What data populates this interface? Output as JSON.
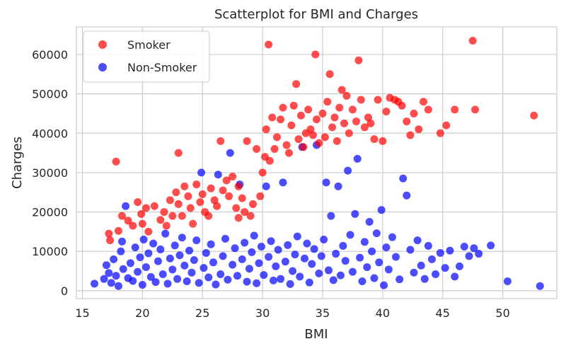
{
  "chart_data": {
    "type": "scatter",
    "title": "Scatterplot for BMI and Charges",
    "xlabel": "BMI",
    "ylabel": "Charges",
    "xlim": [
      14.5,
      54.5
    ],
    "ylim": [
      -2000,
      67000
    ],
    "xticks": [
      15,
      20,
      25,
      30,
      35,
      40,
      45,
      50
    ],
    "yticks": [
      0,
      10000,
      20000,
      30000,
      40000,
      50000,
      60000
    ],
    "grid": true,
    "legend_position": "top-left",
    "series": [
      {
        "name": "Smoker",
        "color": "#ff0000",
        "points": [
          [
            17.2,
            14500
          ],
          [
            17.3,
            12800
          ],
          [
            17.8,
            32800
          ],
          [
            18.0,
            15200
          ],
          [
            18.3,
            19000
          ],
          [
            18.8,
            17800
          ],
          [
            19.2,
            16500
          ],
          [
            19.6,
            22500
          ],
          [
            19.9,
            19500
          ],
          [
            20.0,
            17000
          ],
          [
            20.3,
            21000
          ],
          [
            20.5,
            15000
          ],
          [
            21.0,
            21500
          ],
          [
            21.5,
            18000
          ],
          [
            21.8,
            20000
          ],
          [
            22.0,
            16500
          ],
          [
            22.3,
            23000
          ],
          [
            22.5,
            19000
          ],
          [
            22.8,
            25000
          ],
          [
            23.0,
            35000
          ],
          [
            23.0,
            22000
          ],
          [
            23.3,
            19000
          ],
          [
            23.5,
            26500
          ],
          [
            23.8,
            24000
          ],
          [
            24.0,
            21000
          ],
          [
            24.2,
            17000
          ],
          [
            24.5,
            27000
          ],
          [
            24.8,
            22500
          ],
          [
            25.0,
            24500
          ],
          [
            25.2,
            20000
          ],
          [
            25.5,
            19000
          ],
          [
            25.7,
            26000
          ],
          [
            26.0,
            23000
          ],
          [
            26.2,
            21500
          ],
          [
            26.5,
            38000
          ],
          [
            26.7,
            25500
          ],
          [
            27.0,
            28000
          ],
          [
            27.2,
            24000
          ],
          [
            27.5,
            29000
          ],
          [
            27.8,
            21000
          ],
          [
            28.0,
            18500
          ],
          [
            28.0,
            26500
          ],
          [
            28.3,
            23500
          ],
          [
            28.5,
            20000
          ],
          [
            28.7,
            38000
          ],
          [
            29.0,
            19000
          ],
          [
            29.2,
            22000
          ],
          [
            29.5,
            36000
          ],
          [
            29.8,
            24000
          ],
          [
            30.0,
            30000
          ],
          [
            30.2,
            34000
          ],
          [
            30.3,
            41000
          ],
          [
            30.5,
            62500
          ],
          [
            30.6,
            33000
          ],
          [
            30.8,
            44000
          ],
          [
            31.0,
            36000
          ],
          [
            31.2,
            39000
          ],
          [
            31.5,
            43500
          ],
          [
            31.7,
            46500
          ],
          [
            32.0,
            37000
          ],
          [
            32.2,
            35000
          ],
          [
            32.4,
            42000
          ],
          [
            32.6,
            47000
          ],
          [
            32.8,
            52500
          ],
          [
            33.0,
            38500
          ],
          [
            33.2,
            44500
          ],
          [
            33.4,
            36500
          ],
          [
            33.6,
            40000
          ],
          [
            33.8,
            46000
          ],
          [
            34.0,
            41000
          ],
          [
            34.2,
            39500
          ],
          [
            34.4,
            60000
          ],
          [
            34.5,
            43500
          ],
          [
            34.7,
            37500
          ],
          [
            35.0,
            45000
          ],
          [
            35.2,
            39000
          ],
          [
            35.4,
            48000
          ],
          [
            35.6,
            55000
          ],
          [
            35.8,
            41500
          ],
          [
            36.0,
            44000
          ],
          [
            36.2,
            38000
          ],
          [
            36.4,
            46500
          ],
          [
            36.6,
            51000
          ],
          [
            36.8,
            42500
          ],
          [
            37.0,
            49500
          ],
          [
            37.2,
            40000
          ],
          [
            37.5,
            46000
          ],
          [
            37.8,
            43000
          ],
          [
            38.0,
            58500
          ],
          [
            38.2,
            48500
          ],
          [
            38.5,
            41500
          ],
          [
            38.8,
            44000
          ],
          [
            39.0,
            42500
          ],
          [
            39.3,
            38500
          ],
          [
            39.6,
            48500
          ],
          [
            40.0,
            38000
          ],
          [
            40.3,
            45500
          ],
          [
            40.6,
            49000
          ],
          [
            41.0,
            48500
          ],
          [
            41.3,
            48000
          ],
          [
            41.6,
            47000
          ],
          [
            42.0,
            43000
          ],
          [
            42.3,
            39500
          ],
          [
            42.6,
            45000
          ],
          [
            43.0,
            41000
          ],
          [
            43.4,
            48000
          ],
          [
            43.8,
            46000
          ],
          [
            44.8,
            40000
          ],
          [
            45.3,
            42000
          ],
          [
            46.0,
            46000
          ],
          [
            47.5,
            63500
          ],
          [
            47.7,
            46000
          ],
          [
            52.6,
            44500
          ]
        ]
      },
      {
        "name": "Non-Smoker",
        "color": "#0000ff",
        "points": [
          [
            16.0,
            1800
          ],
          [
            16.8,
            3000
          ],
          [
            17.0,
            6500
          ],
          [
            17.2,
            4500
          ],
          [
            17.4,
            2000
          ],
          [
            17.6,
            8000
          ],
          [
            17.8,
            3800
          ],
          [
            18.0,
            1200
          ],
          [
            18.2,
            10000
          ],
          [
            18.3,
            12500
          ],
          [
            18.4,
            5500
          ],
          [
            18.6,
            21500
          ],
          [
            18.8,
            3200
          ],
          [
            19.0,
            7000
          ],
          [
            19.2,
            2500
          ],
          [
            19.4,
            11000
          ],
          [
            19.6,
            4800
          ],
          [
            19.8,
            8500
          ],
          [
            20.0,
            1500
          ],
          [
            20.1,
            13000
          ],
          [
            20.3,
            6000
          ],
          [
            20.5,
            9500
          ],
          [
            20.7,
            3500
          ],
          [
            20.9,
            12000
          ],
          [
            21.1,
            2200
          ],
          [
            21.3,
            7500
          ],
          [
            21.5,
            10500
          ],
          [
            21.7,
            4200
          ],
          [
            21.9,
            14500
          ],
          [
            22.1,
            1800
          ],
          [
            22.3,
            8200
          ],
          [
            22.5,
            5400
          ],
          [
            22.7,
            11500
          ],
          [
            22.9,
            3000
          ],
          [
            23.1,
            9000
          ],
          [
            23.3,
            13500
          ],
          [
            23.5,
            6400
          ],
          [
            23.7,
            2400
          ],
          [
            23.9,
            10200
          ],
          [
            24.1,
            4600
          ],
          [
            24.3,
            7800
          ],
          [
            24.5,
            12800
          ],
          [
            24.7,
            2000
          ],
          [
            24.9,
            30000
          ],
          [
            25.1,
            5800
          ],
          [
            25.3,
            9600
          ],
          [
            25.5,
            3400
          ],
          [
            25.7,
            11800
          ],
          [
            25.9,
            7200
          ],
          [
            26.1,
            1600
          ],
          [
            26.3,
            29500
          ],
          [
            26.5,
            4200
          ],
          [
            26.7,
            8800
          ],
          [
            26.9,
            13200
          ],
          [
            27.1,
            2800
          ],
          [
            27.3,
            35000
          ],
          [
            27.5,
            6600
          ],
          [
            27.7,
            10800
          ],
          [
            27.9,
            3800
          ],
          [
            28.1,
            27000
          ],
          [
            28.3,
            8000
          ],
          [
            28.5,
            12200
          ],
          [
            28.7,
            2300
          ],
          [
            28.9,
            5600
          ],
          [
            29.1,
            9800
          ],
          [
            29.3,
            14000
          ],
          [
            29.5,
            1900
          ],
          [
            29.7,
            7000
          ],
          [
            29.9,
            11200
          ],
          [
            30.1,
            4000
          ],
          [
            30.3,
            26500
          ],
          [
            30.5,
            8600
          ],
          [
            30.7,
            12600
          ],
          [
            30.9,
            2600
          ],
          [
            31.1,
            6200
          ],
          [
            31.3,
            10400
          ],
          [
            31.5,
            3000
          ],
          [
            31.7,
            27500
          ],
          [
            31.9,
            7400
          ],
          [
            32.1,
            11600
          ],
          [
            32.3,
            1700
          ],
          [
            32.5,
            5000
          ],
          [
            32.7,
            9200
          ],
          [
            32.9,
            13800
          ],
          [
            33.1,
            3600
          ],
          [
            33.3,
            36500
          ],
          [
            33.5,
            8200
          ],
          [
            33.7,
            12000
          ],
          [
            33.9,
            2100
          ],
          [
            34.1,
            6800
          ],
          [
            34.3,
            10600
          ],
          [
            34.5,
            37000
          ],
          [
            34.7,
            4400
          ],
          [
            34.9,
            8800
          ],
          [
            35.1,
            13000
          ],
          [
            35.3,
            27500
          ],
          [
            35.5,
            5200
          ],
          [
            35.7,
            19000
          ],
          [
            35.9,
            2700
          ],
          [
            36.1,
            9400
          ],
          [
            36.3,
            26500
          ],
          [
            36.5,
            3900
          ],
          [
            36.7,
            11400
          ],
          [
            36.9,
            7600
          ],
          [
            37.1,
            30500
          ],
          [
            37.3,
            14200
          ],
          [
            37.5,
            4800
          ],
          [
            37.7,
            19500
          ],
          [
            37.9,
            33500
          ],
          [
            38.1,
            8400
          ],
          [
            38.3,
            2400
          ],
          [
            38.5,
            12400
          ],
          [
            38.7,
            6000
          ],
          [
            38.9,
            17500
          ],
          [
            39.1,
            10000
          ],
          [
            39.3,
            3200
          ],
          [
            39.5,
            14600
          ],
          [
            39.7,
            7200
          ],
          [
            39.9,
            20500
          ],
          [
            40.1,
            1400
          ],
          [
            40.3,
            11000
          ],
          [
            40.5,
            5400
          ],
          [
            40.8,
            13600
          ],
          [
            41.1,
            8600
          ],
          [
            41.4,
            2900
          ],
          [
            41.7,
            28500
          ],
          [
            42.0,
            24200
          ],
          [
            42.3,
            10400
          ],
          [
            42.6,
            4600
          ],
          [
            42.9,
            12800
          ],
          [
            43.2,
            6400
          ],
          [
            43.5,
            3000
          ],
          [
            43.8,
            11400
          ],
          [
            44.1,
            8000
          ],
          [
            44.4,
            4200
          ],
          [
            44.8,
            9600
          ],
          [
            45.2,
            5800
          ],
          [
            45.6,
            10200
          ],
          [
            46.0,
            3600
          ],
          [
            46.4,
            6200
          ],
          [
            46.8,
            11200
          ],
          [
            47.2,
            8800
          ],
          [
            47.6,
            10800
          ],
          [
            48.0,
            9400
          ],
          [
            49.0,
            11500
          ],
          [
            50.4,
            2400
          ],
          [
            53.1,
            1200
          ]
        ]
      }
    ]
  }
}
